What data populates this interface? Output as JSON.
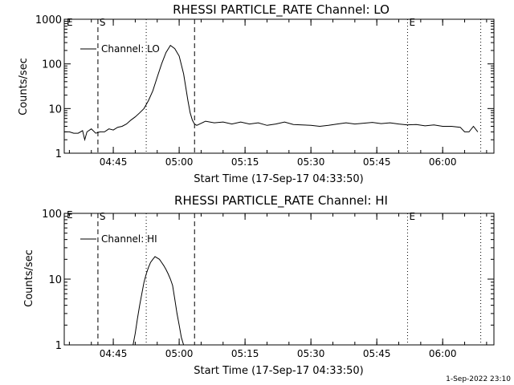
{
  "footer_stamp": "1-Sep-2022 23:10",
  "chart_data": [
    {
      "type": "line",
      "title": "RHESSI PARTICLE_RATE Channel: LO",
      "xlabel": "Start Time (17-Sep-17 04:33:50)",
      "ylabel": "Counts/sec",
      "yscale": "log",
      "ylim": [
        1,
        1000
      ],
      "xlim": [
        "04:33:50",
        "06:11:40"
      ],
      "x_ticks": [
        "04:45",
        "05:00",
        "05:15",
        "05:30",
        "05:45",
        "06:00"
      ],
      "y_ticks": [
        "1",
        "10",
        "100",
        "1000"
      ],
      "legend": "top-left",
      "series": [
        {
          "name": "Channel: LO",
          "x": [
            "04:33:50",
            "04:35:00",
            "04:36:00",
            "04:37:00",
            "04:38:00",
            "04:38:30",
            "04:39:00",
            "04:40:00",
            "04:41:00",
            "04:42:00",
            "04:43:00",
            "04:44:00",
            "04:45:00",
            "04:46:00",
            "04:47:00",
            "04:48:00",
            "04:49:00",
            "04:50:00",
            "04:51:00",
            "04:52:00",
            "04:53:00",
            "04:54:00",
            "04:55:00",
            "04:56:00",
            "04:57:00",
            "04:58:00",
            "04:59:00",
            "05:00:00",
            "05:01:00",
            "05:02:00",
            "05:02:30",
            "05:03:00",
            "05:03:30",
            "05:04:00",
            "05:06:00",
            "05:08:00",
            "05:10:00",
            "05:12:00",
            "05:14:00",
            "05:16:00",
            "05:18:00",
            "05:20:00",
            "05:22:00",
            "05:24:00",
            "05:26:00",
            "05:28:00",
            "05:30:00",
            "05:32:00",
            "05:34:00",
            "05:36:00",
            "05:38:00",
            "05:40:00",
            "05:42:00",
            "05:44:00",
            "05:46:00",
            "05:48:00",
            "05:50:00",
            "05:52:00",
            "05:54:00",
            "05:56:00",
            "05:58:00",
            "06:00:00",
            "06:02:00",
            "06:04:00",
            "06:05:00",
            "06:06:00",
            "06:07:00",
            "06:08:00"
          ],
          "values": [
            3,
            3,
            2.8,
            2.8,
            3.2,
            2,
            3,
            3.5,
            2.8,
            3,
            3,
            3.5,
            3.3,
            3.8,
            4,
            4.5,
            5.5,
            6.5,
            8,
            10,
            15,
            25,
            50,
            100,
            180,
            260,
            220,
            150,
            60,
            15,
            8,
            5.5,
            4.5,
            4.2,
            5.2,
            4.8,
            5,
            4.5,
            5,
            4.5,
            4.8,
            4.2,
            4.5,
            5,
            4.4,
            4.3,
            4.2,
            4,
            4.2,
            4.5,
            4.8,
            4.5,
            4.7,
            4.9,
            4.6,
            4.8,
            4.5,
            4.3,
            4.4,
            4.1,
            4.3,
            4,
            4,
            3.8,
            3,
            3,
            4,
            3
          ]
        }
      ],
      "vertical_lines": [
        {
          "label": "S",
          "x": "04:41:30",
          "style": "dashed"
        },
        {
          "x": "04:52:30",
          "style": "dotted"
        },
        {
          "x": "05:03:30",
          "style": "dashed"
        },
        {
          "label": "E",
          "x": "05:52:00",
          "style": "dotted"
        },
        {
          "x": "06:08:40",
          "style": "dotted"
        }
      ],
      "corner_label": "E"
    },
    {
      "type": "line",
      "title": "RHESSI PARTICLE_RATE Channel: HI",
      "xlabel": "Start Time (17-Sep-17 04:33:50)",
      "ylabel": "Counts/sec",
      "yscale": "log",
      "ylim": [
        1,
        100
      ],
      "xlim": [
        "04:33:50",
        "06:11:40"
      ],
      "x_ticks": [
        "04:45",
        "05:00",
        "05:15",
        "05:30",
        "05:45",
        "06:00"
      ],
      "y_ticks": [
        "1",
        "10",
        "100"
      ],
      "legend": "top-left",
      "series": [
        {
          "name": "Channel: HI",
          "x": [
            "04:49:30",
            "04:50:00",
            "04:50:30",
            "04:51:00",
            "04:51:30",
            "04:52:00",
            "04:52:30",
            "04:53:00",
            "04:53:30",
            "04:54:00",
            "04:54:30",
            "04:55:00",
            "04:55:30",
            "04:56:00",
            "04:56:30",
            "04:57:00",
            "04:57:30",
            "04:58:00",
            "04:58:30",
            "04:59:00",
            "04:59:30",
            "05:00:00",
            "05:00:30",
            "05:01:00"
          ],
          "values": [
            1,
            1.5,
            2.5,
            4,
            6,
            9,
            12,
            15,
            18,
            20,
            22,
            21,
            20,
            18,
            16,
            14,
            12,
            10,
            8,
            5,
            3,
            2,
            1.3,
            1
          ]
        }
      ],
      "vertical_lines": [
        {
          "label": "S",
          "x": "04:41:30",
          "style": "dashed"
        },
        {
          "x": "04:52:30",
          "style": "dotted"
        },
        {
          "x": "05:03:30",
          "style": "dashed"
        },
        {
          "label": "E",
          "x": "05:52:00",
          "style": "dotted"
        },
        {
          "x": "06:08:40",
          "style": "dotted"
        }
      ],
      "corner_label": "E"
    }
  ]
}
